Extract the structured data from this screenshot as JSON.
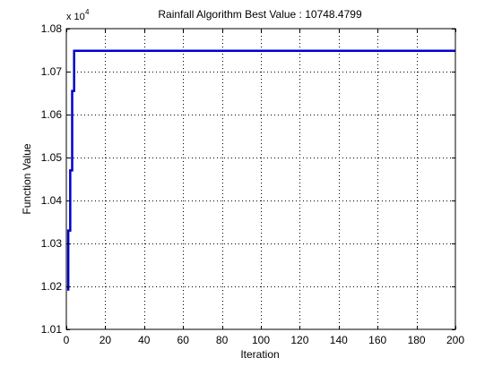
{
  "chart_data": {
    "type": "line",
    "title": "Rainfall Algorithm Best Value : 10748.4799",
    "xlabel": "Iteration",
    "ylabel": "Function Value",
    "y_multiplier_base": "x 10",
    "y_multiplier_exponent": "4",
    "xlim": [
      0,
      200
    ],
    "ylim": [
      10100,
      10800
    ],
    "xticks": [
      0,
      20,
      40,
      60,
      80,
      100,
      120,
      140,
      160,
      180,
      200
    ],
    "xtick_labels": [
      "0",
      "20",
      "40",
      "60",
      "80",
      "100",
      "120",
      "140",
      "160",
      "180",
      "200"
    ],
    "yticks": [
      10100,
      10200,
      10300,
      10400,
      10500,
      10600,
      10700,
      10800
    ],
    "ytick_labels": [
      "1.01",
      "1.02",
      "1.03",
      "1.04",
      "1.05",
      "1.06",
      "1.07",
      "1.08"
    ],
    "grid": true,
    "grid_style": "dotted",
    "legend": "none",
    "series": [
      {
        "color": "#0000cc",
        "x": [
          1,
          1,
          2,
          2,
          3,
          3,
          4,
          4,
          200
        ],
        "y": [
          10190,
          10330,
          10330,
          10470,
          10470,
          10655,
          10655,
          10748.4799,
          10748.4799
        ]
      }
    ]
  }
}
